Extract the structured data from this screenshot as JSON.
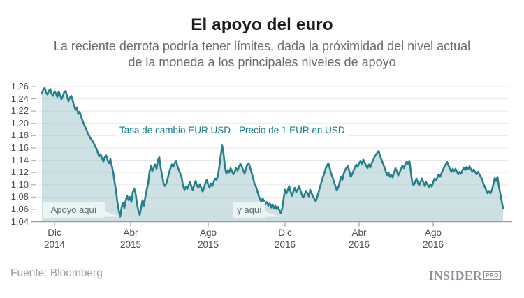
{
  "header": {
    "title": "El apoyo del euro",
    "subtitle_line1": "La reciente derrota podría tener límites, dada la próximidad del nivel actual",
    "subtitle_line2": "de la moneda a los principales niveles de apoyo"
  },
  "footer": {
    "source": "Fuente: Bloomberg",
    "logo_text": "INSIDER",
    "logo_badge": "PRO"
  },
  "chart_data": {
    "type": "area",
    "title_inline": "Tasa de cambio EUR USD - Precio de 1 EUR en USD",
    "ylim": [
      1.04,
      1.26
    ],
    "grid": true,
    "legend": "none",
    "x_unit": "time, Nov 2014 - Nov 2016 (daily EUR/USD rate)",
    "y_ticks": {
      "values": [
        1.26,
        1.24,
        1.22,
        1.2,
        1.18,
        1.16,
        1.14,
        1.12,
        1.1,
        1.08,
        1.06,
        1.04
      ],
      "labels": [
        "1,26",
        "1,24",
        "1,22",
        "1,20",
        "1,18",
        "1,16",
        "1,14",
        "1,12",
        "1,10",
        "1,08",
        "1,06",
        "1,04"
      ]
    },
    "x_ticks": [
      {
        "month": "Dic",
        "year": "2014"
      },
      {
        "month": "Abr",
        "year": "2015"
      },
      {
        "month": "Ago",
        "year": "2015"
      },
      {
        "month": "Dic",
        "year": "2016"
      },
      {
        "month": "Abr",
        "year": "2016"
      },
      {
        "month": "Ago",
        "year": "2016"
      }
    ],
    "annotations": [
      {
        "text": "Apoyo aquí",
        "points_to_value": 1.048,
        "points_to_date": "mar 2015"
      },
      {
        "text": "y aquí",
        "points_to_value": 1.054,
        "points_to_date": "dic 2015"
      }
    ],
    "colors": {
      "line": "#26808c",
      "fill": "#cfe1e4",
      "inline_label": "#11808e",
      "grid": "#e9e9e9",
      "axis": "#9b9b9b"
    },
    "series": [
      {
        "name": "EUR/USD",
        "values": [
          1.249,
          1.255,
          1.258,
          1.25,
          1.247,
          1.253,
          1.256,
          1.248,
          1.245,
          1.252,
          1.249,
          1.243,
          1.252,
          1.247,
          1.239,
          1.245,
          1.251,
          1.253,
          1.244,
          1.236,
          1.242,
          1.245,
          1.237,
          1.229,
          1.222,
          1.226,
          1.215,
          1.219,
          1.211,
          1.205,
          1.199,
          1.194,
          1.189,
          1.183,
          1.179,
          1.175,
          1.172,
          1.168,
          1.163,
          1.159,
          1.152,
          1.146,
          1.15,
          1.143,
          1.138,
          1.145,
          1.148,
          1.14,
          1.135,
          1.142,
          1.131,
          1.12,
          1.105,
          1.09,
          1.072,
          1.058,
          1.048,
          1.063,
          1.071,
          1.062,
          1.075,
          1.082,
          1.075,
          1.08,
          1.072,
          1.088,
          1.094,
          1.086,
          1.07,
          1.058,
          1.051,
          1.063,
          1.075,
          1.066,
          1.08,
          1.092,
          1.102,
          1.121,
          1.131,
          1.122,
          1.128,
          1.133,
          1.126,
          1.14,
          1.145,
          1.127,
          1.115,
          1.103,
          1.098,
          1.102,
          1.11,
          1.12,
          1.127,
          1.133,
          1.129,
          1.135,
          1.139,
          1.13,
          1.124,
          1.118,
          1.112,
          1.098,
          1.092,
          1.097,
          1.093,
          1.099,
          1.105,
          1.097,
          1.091,
          1.1,
          1.106,
          1.099,
          1.095,
          1.101,
          1.095,
          1.089,
          1.095,
          1.103,
          1.108,
          1.1,
          1.095,
          1.102,
          1.098,
          1.105,
          1.11,
          1.108,
          1.115,
          1.13,
          1.148,
          1.164,
          1.15,
          1.128,
          1.118,
          1.124,
          1.12,
          1.127,
          1.122,
          1.117,
          1.121,
          1.127,
          1.123,
          1.129,
          1.134,
          1.13,
          1.124,
          1.118,
          1.126,
          1.133,
          1.135,
          1.128,
          1.12,
          1.112,
          1.103,
          1.098,
          1.091,
          1.083,
          1.077,
          1.072,
          1.078,
          1.073,
          1.068,
          1.072,
          1.066,
          1.07,
          1.063,
          1.068,
          1.062,
          1.066,
          1.06,
          1.064,
          1.058,
          1.054,
          1.062,
          1.078,
          1.092,
          1.086,
          1.092,
          1.098,
          1.088,
          1.082,
          1.09,
          1.095,
          1.088,
          1.092,
          1.098,
          1.091,
          1.084,
          1.079,
          1.084,
          1.09,
          1.086,
          1.081,
          1.092,
          1.086,
          1.081,
          1.077,
          1.073,
          1.08,
          1.088,
          1.096,
          1.104,
          1.112,
          1.118,
          1.126,
          1.131,
          1.135,
          1.127,
          1.118,
          1.112,
          1.105,
          1.098,
          1.091,
          1.095,
          1.103,
          1.113,
          1.108,
          1.118,
          1.124,
          1.128,
          1.13,
          1.122,
          1.113,
          1.117,
          1.123,
          1.128,
          1.133,
          1.129,
          1.135,
          1.139,
          1.134,
          1.141,
          1.136,
          1.131,
          1.127,
          1.133,
          1.128,
          1.135,
          1.14,
          1.145,
          1.149,
          1.152,
          1.155,
          1.147,
          1.141,
          1.135,
          1.129,
          1.122,
          1.116,
          1.12,
          1.113,
          1.116,
          1.112,
          1.12,
          1.127,
          1.122,
          1.115,
          1.12,
          1.126,
          1.131,
          1.127,
          1.133,
          1.138,
          1.134,
          1.139,
          1.122,
          1.104,
          1.099,
          1.104,
          1.11,
          1.104,
          1.099,
          1.105,
          1.11,
          1.104,
          1.098,
          1.104,
          1.1,
          1.096,
          1.101,
          1.097,
          1.104,
          1.11,
          1.107,
          1.112,
          1.117,
          1.113,
          1.119,
          1.124,
          1.129,
          1.133,
          1.137,
          1.131,
          1.126,
          1.121,
          1.126,
          1.122,
          1.126,
          1.121,
          1.117,
          1.121,
          1.118,
          1.124,
          1.128,
          1.124,
          1.129,
          1.125,
          1.13,
          1.125,
          1.121,
          1.125,
          1.121,
          1.117,
          1.121,
          1.117,
          1.113,
          1.109,
          1.101,
          1.096,
          1.091,
          1.086,
          1.09,
          1.086,
          1.091,
          1.1,
          1.111,
          1.106,
          1.113,
          1.098,
          1.086,
          1.073,
          1.062
        ]
      }
    ]
  }
}
